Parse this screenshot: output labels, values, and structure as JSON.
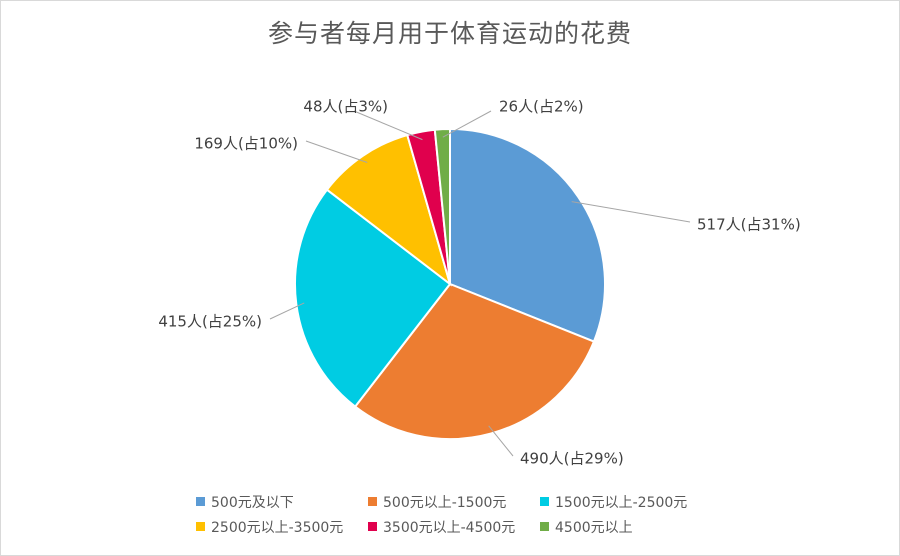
{
  "chart_data": {
    "type": "pie",
    "title": "参与者每月用于体育运动的花费",
    "categories": [
      "500元及以下",
      "500元以上-1500元",
      "1500元以上-2500元",
      "2500元以上-3500元",
      "3500元以上-4500元",
      "4500元以上"
    ],
    "values": [
      517,
      490,
      415,
      169,
      48,
      26
    ],
    "percent_labels": [
      "31%",
      "29%",
      "25%",
      "10%",
      "3%",
      "2%"
    ],
    "data_labels": [
      "517人(占31%)",
      "490人(占29%)",
      "415人(占25%)",
      "169人(占10%)",
      "48人(占3%)",
      "26人(占2%)"
    ],
    "colors": [
      "#5B9BD5",
      "#ED7D31",
      "#00CCE3",
      "#FFC000",
      "#E0004D",
      "#70AD47"
    ],
    "legend_position": "bottom",
    "start_angle": "12 o'clock, clockwise"
  }
}
